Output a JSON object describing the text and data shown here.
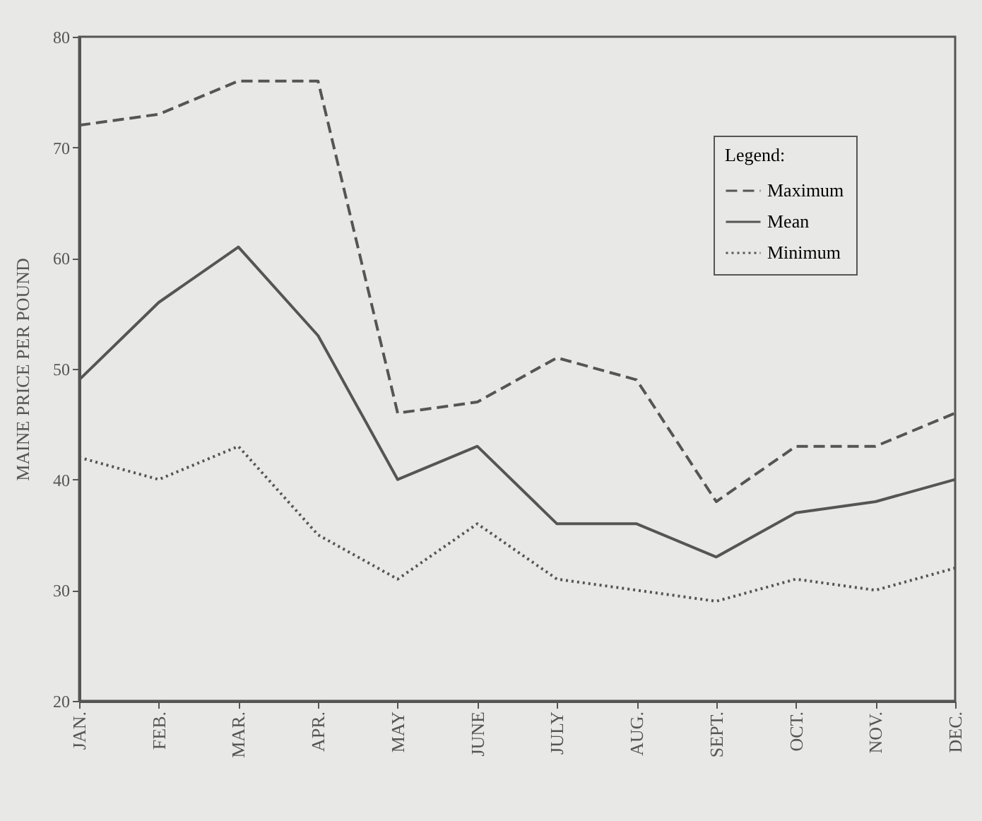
{
  "chart_data": {
    "type": "line",
    "ylabel": "MAINE PRICE PER POUND",
    "legend_title": "Legend:",
    "legend": "top right",
    "grid": false,
    "marker": "none",
    "categories": [
      "JAN.",
      "FEB.",
      "MAR.",
      "APR.",
      "MAY",
      "JUNE",
      "JULY",
      "AUG.",
      "SEPT.",
      "OCT.",
      "NOV.",
      "DEC."
    ],
    "ylim": [
      20,
      80
    ],
    "yticks": [
      20,
      30,
      40,
      50,
      60,
      70,
      80
    ],
    "series": [
      {
        "name": "Maximum",
        "color": "#555555",
        "line_style": "dashed",
        "values": [
          72,
          73,
          76,
          76,
          46,
          47,
          51,
          49,
          38,
          43,
          43,
          46
        ]
      },
      {
        "name": "Mean",
        "color": "#555555",
        "line_style": "solid",
        "values": [
          49,
          56,
          61,
          53,
          40,
          43,
          36,
          36,
          33,
          37,
          38,
          40
        ]
      },
      {
        "name": "Minimum",
        "color": "#555555",
        "line_style": "dotted",
        "values": [
          42,
          40,
          43,
          35,
          31,
          36,
          31,
          30,
          29,
          31,
          30,
          32
        ]
      }
    ]
  }
}
